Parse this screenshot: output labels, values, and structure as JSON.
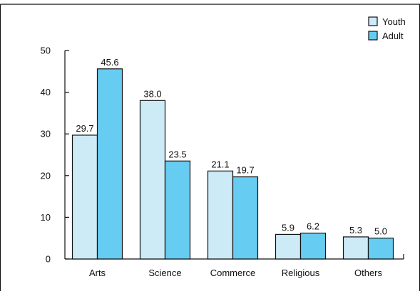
{
  "chart_data": {
    "type": "bar",
    "categories": [
      "Arts",
      "Science",
      "Commerce",
      "Religious",
      "Others"
    ],
    "series": [
      {
        "name": "Youth",
        "values": [
          29.7,
          38.0,
          21.1,
          5.9,
          5.3
        ],
        "color": "#cdeaf7"
      },
      {
        "name": "Adult",
        "values": [
          45.6,
          23.5,
          19.7,
          6.2,
          5.0
        ],
        "color": "#66ccf2"
      }
    ],
    "data_labels": [
      [
        "29.7",
        "38.0",
        "21.1",
        "5.9",
        "5.3"
      ],
      [
        "45.6",
        "23.5",
        "19.7",
        "6.2",
        "5.0"
      ]
    ],
    "y_ticks": [
      "0",
      "10",
      "20",
      "30",
      "40",
      "50"
    ],
    "ylim": [
      0,
      50
    ],
    "grid": false,
    "legend_position": "top-right"
  }
}
